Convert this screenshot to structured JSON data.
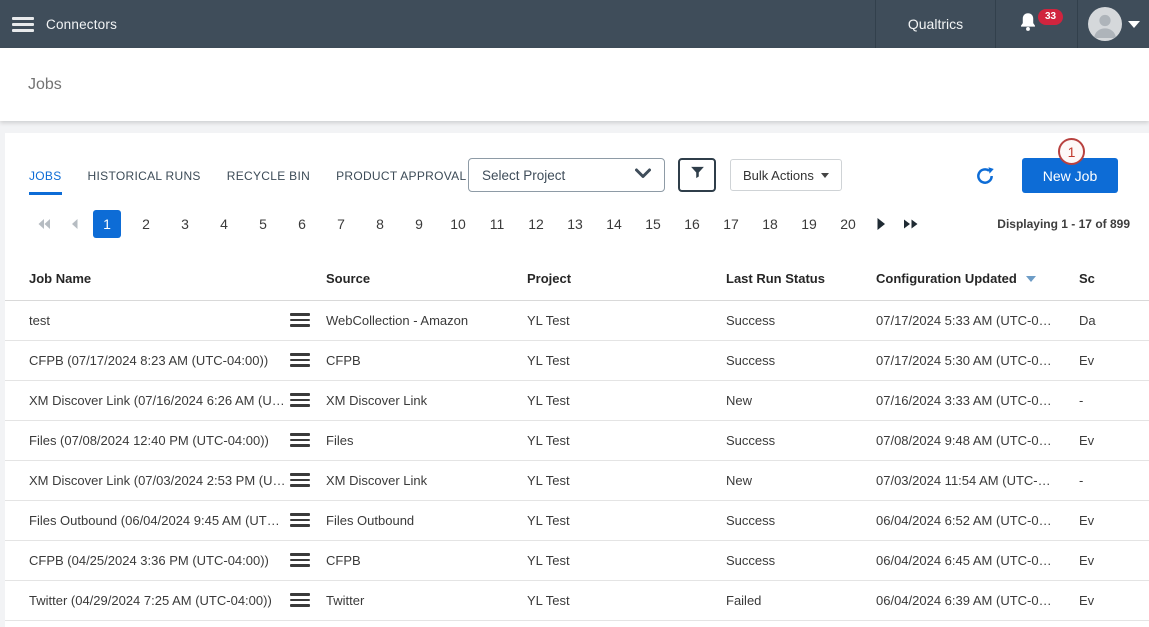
{
  "topbar": {
    "app_title": "Connectors",
    "brand": "Qualtrics",
    "notification_count": "33"
  },
  "page": {
    "title": "Jobs"
  },
  "tabs": [
    {
      "label": "JOBS",
      "active": true
    },
    {
      "label": "HISTORICAL RUNS",
      "active": false
    },
    {
      "label": "RECYCLE BIN",
      "active": false
    },
    {
      "label": "PRODUCT APPROVAL",
      "active": false
    }
  ],
  "toolbar": {
    "project_select": "Select Project",
    "bulk_actions_label": "Bulk Actions",
    "new_job_label": "New Job",
    "annotation_badge": "1"
  },
  "pagination": {
    "pages": [
      "1",
      "2",
      "3",
      "4",
      "5",
      "6",
      "7",
      "8",
      "9",
      "10",
      "11",
      "12",
      "13",
      "14",
      "15",
      "16",
      "17",
      "18",
      "19",
      "20"
    ],
    "active_page": "1",
    "summary": "Displaying 1 - 17 of 899"
  },
  "table": {
    "columns": [
      "Job Name",
      "Source",
      "Project",
      "Last Run Status",
      "Configuration Updated",
      "Sc"
    ],
    "sorted_column": "Configuration Updated",
    "sort_direction": "desc",
    "rows": [
      {
        "name": "test",
        "source": "WebCollection - Amazon",
        "project": "YL Test",
        "status": "Success",
        "status_type": "success",
        "updated": "07/17/2024 5:33 AM (UTC-0…",
        "schedule": "Da"
      },
      {
        "name": "CFPB (07/17/2024 8:23 AM (UTC-04:00))",
        "source": "CFPB",
        "project": "YL Test",
        "status": "Success",
        "status_type": "success",
        "updated": "07/17/2024 5:30 AM (UTC-0…",
        "schedule": "Ev"
      },
      {
        "name": "XM Discover Link (07/16/2024 6:26 AM (U…",
        "source": "XM Discover Link",
        "project": "YL Test",
        "status": "New",
        "status_type": "new",
        "updated": "07/16/2024 3:33 AM (UTC-0…",
        "schedule": "-"
      },
      {
        "name": "Files (07/08/2024 12:40 PM (UTC-04:00))",
        "source": "Files",
        "project": "YL Test",
        "status": "Success",
        "status_type": "success",
        "updated": "07/08/2024 9:48 AM (UTC-0…",
        "schedule": "Ev"
      },
      {
        "name": "XM Discover Link (07/03/2024 2:53 PM (U…",
        "source": "XM Discover Link",
        "project": "YL Test",
        "status": "New",
        "status_type": "new",
        "updated": "07/03/2024 11:54 AM (UTC-…",
        "schedule": "-"
      },
      {
        "name": "Files Outbound (06/04/2024 9:45 AM (UT…",
        "source": "Files Outbound",
        "project": "YL Test",
        "status": "Success",
        "status_type": "success",
        "updated": "06/04/2024 6:52 AM (UTC-0…",
        "schedule": "Ev"
      },
      {
        "name": "CFPB (04/25/2024 3:36 PM (UTC-04:00))",
        "source": "CFPB",
        "project": "YL Test",
        "status": "Success",
        "status_type": "success",
        "updated": "06/04/2024 6:45 AM (UTC-0…",
        "schedule": "Ev"
      },
      {
        "name": "Twitter (04/29/2024 7:25 AM (UTC-04:00))",
        "source": "Twitter",
        "project": "YL Test",
        "status": "Failed",
        "status_type": "failed",
        "updated": "06/04/2024 6:39 AM (UTC-0…",
        "schedule": "Ev"
      }
    ]
  },
  "colors": {
    "topbar_bg": "#3f4d5a",
    "accent_blue": "#0d6cd6",
    "success_green": "#17813d",
    "failed_red": "#d43c31",
    "badge_red": "#d0243e",
    "annotation_red": "#c0392b"
  }
}
